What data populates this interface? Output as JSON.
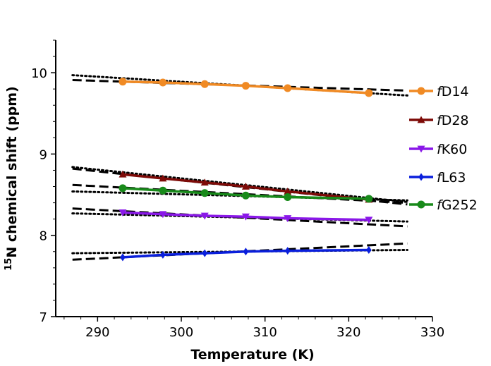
{
  "chart_data": {
    "type": "line",
    "xlabel": "Temperature (K)",
    "ylabel_sup": "15",
    "ylabel_main": "N chemical shift (ppm)",
    "xlim": [
      285,
      330
    ],
    "ylim": [
      7,
      10.4
    ],
    "xticks": [
      290,
      300,
      310,
      320,
      330
    ],
    "yticks": [
      7,
      8,
      9,
      10
    ],
    "x": [
      293,
      297.8,
      302.8,
      307.7,
      312.7,
      322.4
    ],
    "legend_position": "right",
    "series": [
      {
        "name_prefix": "f",
        "name_suffix": "D14",
        "color": "#f08a24",
        "marker": "circle",
        "values": [
          9.89,
          9.88,
          9.86,
          9.84,
          9.81,
          9.75
        ],
        "fit_dashed": [
          [
            287,
            9.91
          ],
          [
            327,
            9.78
          ]
        ],
        "fit_dotted": [
          [
            287,
            9.97
          ],
          [
            327,
            9.72
          ]
        ]
      },
      {
        "name_prefix": "f",
        "name_suffix": "D28",
        "color": "#7e0b08",
        "marker": "triangle-up",
        "values": [
          8.75,
          8.7,
          8.65,
          8.6,
          8.54,
          8.44
        ],
        "fit_dashed": [
          [
            287,
            8.82
          ],
          [
            327,
            8.38
          ]
        ],
        "fit_dotted": [
          [
            287,
            8.84
          ],
          [
            327,
            8.41
          ]
        ]
      },
      {
        "name_prefix": "f",
        "name_suffix": "K60",
        "color": "#8a18e8",
        "marker": "triangle-down",
        "values": [
          8.28,
          8.26,
          8.24,
          8.23,
          8.21,
          8.19
        ],
        "fit_dashed": [
          [
            287,
            8.33
          ],
          [
            327,
            8.11
          ]
        ],
        "fit_dotted": [
          [
            287,
            8.27
          ],
          [
            327,
            8.17
          ]
        ]
      },
      {
        "name_prefix": "f",
        "name_suffix": "L63",
        "color": "#0a1fdc",
        "marker": "diamond",
        "values": [
          7.73,
          7.76,
          7.78,
          7.8,
          7.81,
          7.82
        ],
        "fit_dashed": [
          [
            287,
            7.7
          ],
          [
            327,
            7.9
          ]
        ],
        "fit_dotted": [
          [
            287,
            7.78
          ],
          [
            327,
            7.82
          ]
        ]
      },
      {
        "name_prefix": "f",
        "name_suffix": "G252",
        "color": "#188a1a",
        "marker": "circle",
        "values": [
          8.58,
          8.55,
          8.52,
          8.49,
          8.47,
          8.45
        ],
        "fit_dashed": [
          [
            287,
            8.62
          ],
          [
            327,
            8.4
          ]
        ],
        "fit_dotted": [
          [
            287,
            8.54
          ],
          [
            327,
            8.43
          ]
        ]
      }
    ]
  }
}
